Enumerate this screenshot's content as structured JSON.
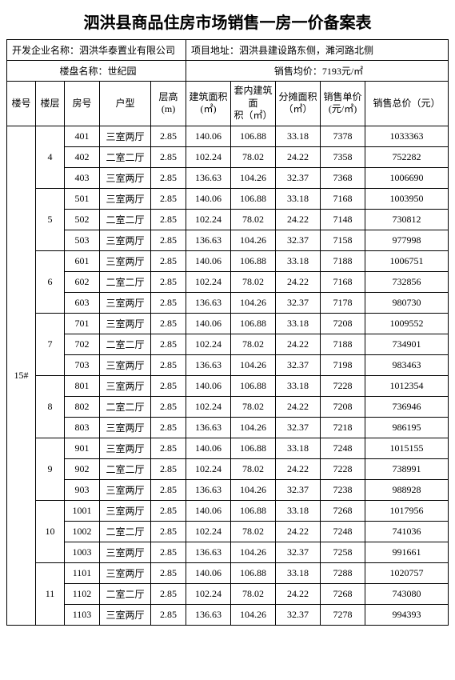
{
  "title": "泗洪县商品住房市场销售一房一价备案表",
  "info": {
    "dev_label": "开发企业名称：",
    "dev_value": "泗洪华泰置业有限公司",
    "addr_label": "项目地址：",
    "addr_value": "泗洪县建设路东侧，濉河路北侧",
    "proj_label": "楼盘名称：",
    "proj_value": "世纪园",
    "avg_label": "销售均价：",
    "avg_value": "7193元/㎡"
  },
  "headers": {
    "building_no": "楼号",
    "floor": "楼层",
    "room": "房号",
    "unit_type": "户型",
    "height": "层高\n(m)",
    "build_area": "建筑面积\n(㎡)",
    "inner_area": "套内建筑面\n积（㎡）",
    "share_area": "分摊面积\n（㎡）",
    "unit_price": "销售单价\n(元/㎡)",
    "total_price": "销售总价（元）"
  },
  "building": "15#",
  "floors": [
    {
      "floor": "4",
      "rows": [
        {
          "room": "401",
          "unit": "三室两厅",
          "h": "2.85",
          "ba": "140.06",
          "ia": "106.88",
          "sa": "33.18",
          "up": "7378",
          "tp": "1033363"
        },
        {
          "room": "402",
          "unit": "二室二厅",
          "h": "2.85",
          "ba": "102.24",
          "ia": "78.02",
          "sa": "24.22",
          "up": "7358",
          "tp": "752282"
        },
        {
          "room": "403",
          "unit": "三室两厅",
          "h": "2.85",
          "ba": "136.63",
          "ia": "104.26",
          "sa": "32.37",
          "up": "7368",
          "tp": "1006690"
        }
      ]
    },
    {
      "floor": "5",
      "rows": [
        {
          "room": "501",
          "unit": "三室两厅",
          "h": "2.85",
          "ba": "140.06",
          "ia": "106.88",
          "sa": "33.18",
          "up": "7168",
          "tp": "1003950"
        },
        {
          "room": "502",
          "unit": "二室二厅",
          "h": "2.85",
          "ba": "102.24",
          "ia": "78.02",
          "sa": "24.22",
          "up": "7148",
          "tp": "730812"
        },
        {
          "room": "503",
          "unit": "三室两厅",
          "h": "2.85",
          "ba": "136.63",
          "ia": "104.26",
          "sa": "32.37",
          "up": "7158",
          "tp": "977998"
        }
      ]
    },
    {
      "floor": "6",
      "rows": [
        {
          "room": "601",
          "unit": "三室两厅",
          "h": "2.85",
          "ba": "140.06",
          "ia": "106.88",
          "sa": "33.18",
          "up": "7188",
          "tp": "1006751"
        },
        {
          "room": "602",
          "unit": "二室二厅",
          "h": "2.85",
          "ba": "102.24",
          "ia": "78.02",
          "sa": "24.22",
          "up": "7168",
          "tp": "732856"
        },
        {
          "room": "603",
          "unit": "三室两厅",
          "h": "2.85",
          "ba": "136.63",
          "ia": "104.26",
          "sa": "32.37",
          "up": "7178",
          "tp": "980730"
        }
      ]
    },
    {
      "floor": "7",
      "rows": [
        {
          "room": "701",
          "unit": "三室两厅",
          "h": "2.85",
          "ba": "140.06",
          "ia": "106.88",
          "sa": "33.18",
          "up": "7208",
          "tp": "1009552"
        },
        {
          "room": "702",
          "unit": "二室二厅",
          "h": "2.85",
          "ba": "102.24",
          "ia": "78.02",
          "sa": "24.22",
          "up": "7188",
          "tp": "734901"
        },
        {
          "room": "703",
          "unit": "三室两厅",
          "h": "2.85",
          "ba": "136.63",
          "ia": "104.26",
          "sa": "32.37",
          "up": "7198",
          "tp": "983463"
        }
      ]
    },
    {
      "floor": "8",
      "rows": [
        {
          "room": "801",
          "unit": "三室两厅",
          "h": "2.85",
          "ba": "140.06",
          "ia": "106.88",
          "sa": "33.18",
          "up": "7228",
          "tp": "1012354"
        },
        {
          "room": "802",
          "unit": "二室二厅",
          "h": "2.85",
          "ba": "102.24",
          "ia": "78.02",
          "sa": "24.22",
          "up": "7208",
          "tp": "736946"
        },
        {
          "room": "803",
          "unit": "三室两厅",
          "h": "2.85",
          "ba": "136.63",
          "ia": "104.26",
          "sa": "32.37",
          "up": "7218",
          "tp": "986195"
        }
      ]
    },
    {
      "floor": "9",
      "rows": [
        {
          "room": "901",
          "unit": "三室两厅",
          "h": "2.85",
          "ba": "140.06",
          "ia": "106.88",
          "sa": "33.18",
          "up": "7248",
          "tp": "1015155"
        },
        {
          "room": "902",
          "unit": "二室二厅",
          "h": "2.85",
          "ba": "102.24",
          "ia": "78.02",
          "sa": "24.22",
          "up": "7228",
          "tp": "738991"
        },
        {
          "room": "903",
          "unit": "三室两厅",
          "h": "2.85",
          "ba": "136.63",
          "ia": "104.26",
          "sa": "32.37",
          "up": "7238",
          "tp": "988928"
        }
      ]
    },
    {
      "floor": "10",
      "rows": [
        {
          "room": "1001",
          "unit": "三室两厅",
          "h": "2.85",
          "ba": "140.06",
          "ia": "106.88",
          "sa": "33.18",
          "up": "7268",
          "tp": "1017956"
        },
        {
          "room": "1002",
          "unit": "二室二厅",
          "h": "2.85",
          "ba": "102.24",
          "ia": "78.02",
          "sa": "24.22",
          "up": "7248",
          "tp": "741036"
        },
        {
          "room": "1003",
          "unit": "三室两厅",
          "h": "2.85",
          "ba": "136.63",
          "ia": "104.26",
          "sa": "32.37",
          "up": "7258",
          "tp": "991661"
        }
      ]
    },
    {
      "floor": "11",
      "rows": [
        {
          "room": "1101",
          "unit": "三室两厅",
          "h": "2.85",
          "ba": "140.06",
          "ia": "106.88",
          "sa": "33.18",
          "up": "7288",
          "tp": "1020757"
        },
        {
          "room": "1102",
          "unit": "二室二厅",
          "h": "2.85",
          "ba": "102.24",
          "ia": "78.02",
          "sa": "24.22",
          "up": "7268",
          "tp": "743080"
        },
        {
          "room": "1103",
          "unit": "三室两厅",
          "h": "2.85",
          "ba": "136.63",
          "ia": "104.26",
          "sa": "32.37",
          "up": "7278",
          "tp": "994393"
        }
      ]
    }
  ]
}
